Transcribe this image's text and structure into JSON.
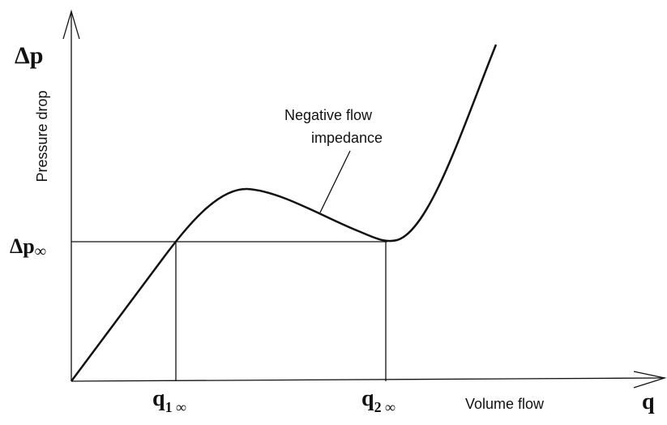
{
  "axes": {
    "y_symbol": "Δp",
    "y_label": "Pressure drop",
    "x_symbol": "q",
    "x_label": "Volume flow"
  },
  "markers": {
    "dp_inf": {
      "symbol": "Δp",
      "subscript": "∞"
    },
    "q1": {
      "symbol": "q",
      "subscript": "1 ∞"
    },
    "q2": {
      "symbol": "q",
      "subscript": "2 ∞"
    }
  },
  "annotation": [
    "Negative flow",
    "impedance"
  ]
}
